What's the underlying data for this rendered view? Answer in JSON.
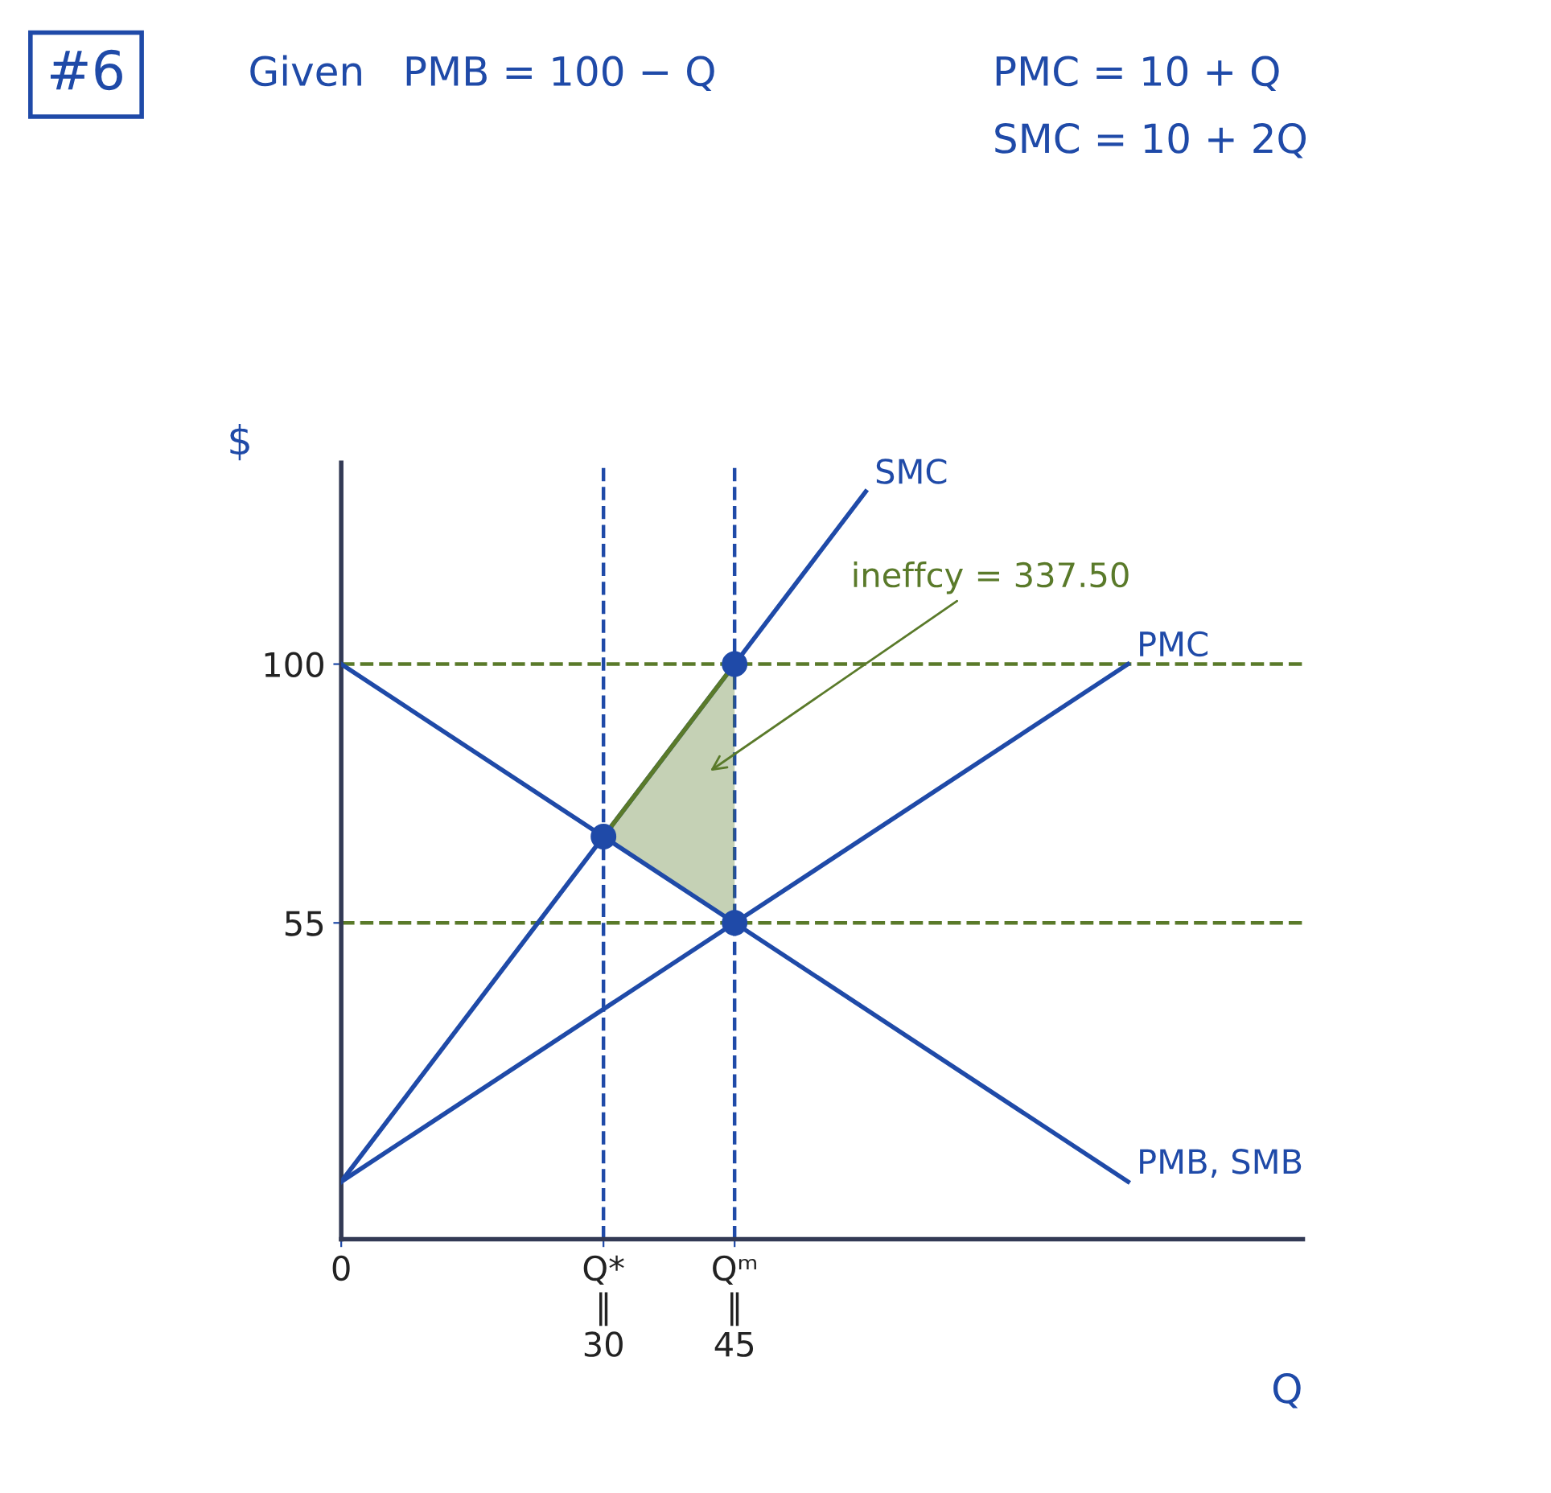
{
  "chart_data": {
    "type": "line",
    "title": "#6",
    "xlabel": "Q",
    "ylabel": "$",
    "annotations": [
      "Given   PMB = 100 − Q",
      "PMC = 10 + Q",
      "SMC = 10 + 2Q",
      "ineffcy = 337.50"
    ],
    "xlim": [
      0,
      110
    ],
    "ylim": [
      0,
      135
    ],
    "xticks": [
      {
        "value": 0,
        "label": "0"
      },
      {
        "value": 30,
        "label": "Q*\n‖\n30"
      },
      {
        "value": 45,
        "label": "Qᵐ\n‖\n45"
      }
    ],
    "yticks": [
      {
        "value": 55,
        "label": "55"
      },
      {
        "value": 100,
        "label": "100"
      }
    ],
    "series": [
      {
        "name": "SMC",
        "color": "#1f4aa8",
        "x": [
          0,
          30,
          45,
          60
        ],
        "values": [
          10,
          70,
          100,
          130
        ]
      },
      {
        "name": "PMC",
        "color": "#1f4aa8",
        "x": [
          0,
          45,
          90
        ],
        "values": [
          10,
          55,
          100
        ]
      },
      {
        "name": "PMB, SMB",
        "color": "#1f4aa8",
        "x": [
          0,
          30,
          45,
          90
        ],
        "values": [
          100,
          70,
          55,
          10
        ]
      },
      {
        "color": "#5a7a2a",
        "x": [
          30,
          45
        ],
        "values": [
          70,
          100
        ],
        "lower": [
          70,
          55
        ],
        "upper": [
          70,
          100
        ]
      },
      {
        "type": "scatter",
        "marker": "circle",
        "color": "#1f4aa8",
        "x": [
          30,
          45,
          45
        ],
        "values": [
          70,
          55,
          100
        ]
      }
    ],
    "ref_lines": [
      {
        "axis": "y",
        "value": 100,
        "color": "#5a7a2a",
        "line_style": "dashed"
      },
      {
        "axis": "y",
        "value": 55,
        "color": "#5a7a2a",
        "line_style": "dashed"
      },
      {
        "axis": "x",
        "value": 30,
        "color": "#1f4aa8",
        "line_style": "dashed"
      },
      {
        "axis": "x",
        "value": 45,
        "color": "#1f4aa8",
        "line_style": "dashed"
      }
    ],
    "legend": false,
    "grid": false,
    "marker": "none",
    "line_style": "solid"
  }
}
